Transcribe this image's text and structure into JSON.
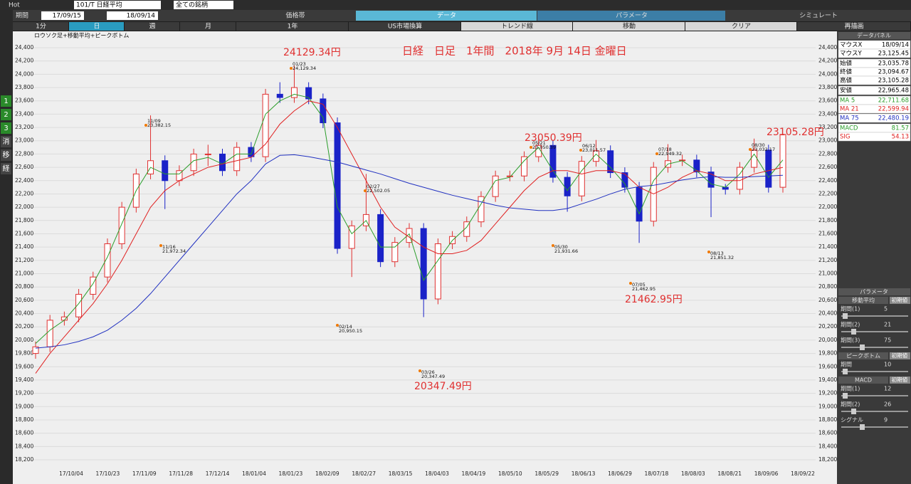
{
  "toolbar": {
    "app": "Hot",
    "period_label": "期間",
    "from": "17/09/15",
    "to": "18/09/14",
    "symbol": "101/T 日経平均",
    "market": "全ての銘柄"
  },
  "tabs": [
    "価格帯",
    "データ",
    "パラメータ",
    "シミュレート"
  ],
  "buttons": [
    "1分",
    "日",
    "週",
    "月",
    "1年",
    "US市場換算",
    "トレンド線",
    "移動",
    "クリア",
    "再描画"
  ],
  "sidebar": [
    "1",
    "2",
    "3",
    "消",
    "移",
    "経"
  ],
  "chart_data": {
    "type": "candlestick",
    "title": "日経　日足　1年間　2018年 9月 14日 金曜日",
    "subtitle": "ロウソク足+移動平均+ピークボトム",
    "x_labels": [
      "17/10/04",
      "17/10/23",
      "17/11/09",
      "17/11/28",
      "17/12/14",
      "18/01/04",
      "18/01/23",
      "18/02/09",
      "18/02/27",
      "18/03/15",
      "18/04/03",
      "18/04/19",
      "18/05/10",
      "18/05/29",
      "18/06/13",
      "18/06/29",
      "18/07/18",
      "18/08/03",
      "18/08/21",
      "18/09/06",
      "18/09/22"
    ],
    "candles": [
      [
        19800,
        19980,
        19720,
        19900
      ],
      [
        19900,
        20380,
        19820,
        20300
      ],
      [
        20300,
        20430,
        20220,
        20350
      ],
      [
        20350,
        20770,
        20270,
        20690
      ],
      [
        20690,
        21030,
        20610,
        20950
      ],
      [
        20950,
        21530,
        20870,
        21450
      ],
      [
        21450,
        22080,
        21370,
        22000
      ],
      [
        22000,
        22580,
        21920,
        22500
      ],
      [
        22500,
        23382,
        22420,
        22700
      ],
      [
        22700,
        22780,
        21972,
        22400
      ],
      [
        22400,
        22630,
        22320,
        22550
      ],
      [
        22550,
        22880,
        22470,
        22800
      ],
      [
        22800,
        22940,
        22620,
        22800
      ],
      [
        22800,
        22880,
        22470,
        22550
      ],
      [
        22550,
        22980,
        22470,
        22900
      ],
      [
        22900,
        22980,
        22680,
        22760
      ],
      [
        22760,
        23780,
        22680,
        23700
      ],
      [
        23700,
        23880,
        23570,
        23650
      ],
      [
        23650,
        24129,
        23570,
        23800
      ],
      [
        23800,
        23880,
        23550,
        23630
      ],
      [
        23630,
        23710,
        23190,
        23270
      ],
      [
        23270,
        23350,
        21300,
        21380
      ],
      [
        21380,
        21800,
        20950,
        21720
      ],
      [
        21720,
        22502,
        21640,
        21890
      ],
      [
        21890,
        21970,
        21100,
        21180
      ],
      [
        21180,
        21550,
        21100,
        21470
      ],
      [
        21470,
        21760,
        21390,
        21680
      ],
      [
        21680,
        21760,
        20347,
        20620
      ],
      [
        20620,
        21530,
        20540,
        21450
      ],
      [
        21450,
        21640,
        21370,
        21560
      ],
      [
        21560,
        21860,
        21480,
        21780
      ],
      [
        21780,
        22240,
        21700,
        22160
      ],
      [
        22160,
        22550,
        22080,
        22470
      ],
      [
        22470,
        22550,
        22390,
        22470
      ],
      [
        22470,
        22840,
        22390,
        22760
      ],
      [
        22760,
        23050,
        22680,
        22930
      ],
      [
        22930,
        23010,
        22370,
        22450
      ],
      [
        22450,
        22530,
        21932,
        22170
      ],
      [
        22170,
        22770,
        22090,
        22690
      ],
      [
        22690,
        23012,
        22610,
        22850
      ],
      [
        22850,
        22930,
        22440,
        22520
      ],
      [
        22520,
        22600,
        22220,
        22300
      ],
      [
        22300,
        22380,
        21463,
        21790
      ],
      [
        21790,
        22680,
        21710,
        22600
      ],
      [
        22600,
        22949,
        22520,
        22700
      ],
      [
        22700,
        22790,
        22620,
        22710
      ],
      [
        22710,
        22790,
        22450,
        22530
      ],
      [
        22530,
        22610,
        21851,
        22300
      ],
      [
        22300,
        22350,
        22190,
        22270
      ],
      [
        22270,
        22680,
        22190,
        22600
      ],
      [
        22600,
        23032,
        22520,
        22860
      ],
      [
        22860,
        22940,
        22220,
        22300
      ],
      [
        22300,
        23105,
        22220,
        23095
      ]
    ],
    "up_color": "#e03030",
    "down_color": "#1a22c8",
    "series": [
      {
        "color": "#2a9d2a",
        "values": [
          19950,
          20150,
          20300,
          20550,
          20850,
          21250,
          21750,
          22250,
          22600,
          22500,
          22500,
          22700,
          22750,
          22650,
          22800,
          22800,
          23400,
          23600,
          23700,
          23650,
          23350,
          22000,
          21600,
          21800,
          21400,
          21400,
          21600,
          20900,
          21200,
          21500,
          21700,
          22050,
          22400,
          22450,
          22700,
          22900,
          22550,
          22250,
          22550,
          22800,
          22600,
          22350,
          21900,
          22400,
          22650,
          22700,
          22550,
          22350,
          22300,
          22500,
          22800,
          22450,
          22712
        ]
      },
      {
        "color": "#e02020",
        "values": [
          19500,
          19800,
          20050,
          20300,
          20550,
          20850,
          21200,
          21600,
          22000,
          22250,
          22400,
          22500,
          22600,
          22650,
          22700,
          22750,
          22950,
          23250,
          23450,
          23600,
          23550,
          23200,
          22800,
          22400,
          22000,
          21700,
          21550,
          21400,
          21300,
          21300,
          21350,
          21500,
          21750,
          22000,
          22250,
          22450,
          22550,
          22550,
          22500,
          22550,
          22550,
          22500,
          22300,
          22200,
          22300,
          22450,
          22550,
          22500,
          22400,
          22400,
          22500,
          22550,
          22600
        ]
      },
      {
        "color": "#2030c0",
        "values": [
          19880,
          19900,
          19930,
          19980,
          20050,
          20150,
          20300,
          20480,
          20700,
          20950,
          21200,
          21450,
          21700,
          21950,
          22200,
          22400,
          22650,
          22780,
          22790,
          22760,
          22720,
          22680,
          22620,
          22560,
          22500,
          22430,
          22360,
          22300,
          22240,
          22180,
          22130,
          22080,
          22030,
          21990,
          21970,
          21950,
          21950,
          21980,
          22050,
          22120,
          22200,
          22270,
          22310,
          22330,
          22370,
          22410,
          22440,
          22460,
          22450,
          22450,
          22460,
          22470,
          22480
        ]
      }
    ],
    "ylim": [
      18200,
      24400
    ],
    "yticks": [
      {
        "value": 18200,
        "label": "18,200"
      },
      {
        "value": 18400,
        "label": "18,400"
      },
      {
        "value": 18600,
        "label": "18,600"
      },
      {
        "value": 18800,
        "label": "18,800"
      },
      {
        "value": 19000,
        "label": "19,000"
      },
      {
        "value": 19200,
        "label": "19,200"
      },
      {
        "value": 19400,
        "label": "19,400"
      },
      {
        "value": 19600,
        "label": "19,600"
      },
      {
        "value": 19800,
        "label": "19,800"
      },
      {
        "value": 20000,
        "label": "20,000"
      },
      {
        "value": 20200,
        "label": "20,200"
      },
      {
        "value": 20400,
        "label": "20,400"
      },
      {
        "value": 20600,
        "label": "20,600"
      },
      {
        "value": 20800,
        "label": "20,800"
      },
      {
        "value": 21000,
        "label": "21,000"
      },
      {
        "value": 21200,
        "label": "21,200"
      },
      {
        "value": 21400,
        "label": "21,400"
      },
      {
        "value": 21600,
        "label": "21,600"
      },
      {
        "value": 21800,
        "label": "21,800"
      },
      {
        "value": 22000,
        "label": "22,000"
      },
      {
        "value": 22200,
        "label": "22,200"
      },
      {
        "value": 22400,
        "label": "22,400"
      },
      {
        "value": 22600,
        "label": "22,600"
      },
      {
        "value": 22800,
        "label": "22,800"
      },
      {
        "value": 23000,
        "label": "23,000"
      },
      {
        "value": 23200,
        "label": "23,200"
      },
      {
        "value": 23400,
        "label": "23,400"
      },
      {
        "value": 23600,
        "label": "23,600"
      },
      {
        "value": 23800,
        "label": "23,800"
      },
      {
        "value": 24000,
        "label": "24,000"
      },
      {
        "value": 24200,
        "label": "24,200"
      },
      {
        "value": 24400,
        "label": "24,400"
      }
    ],
    "grid": true,
    "annotations": [
      "24129.34円",
      "23050.39円",
      "23105.28円",
      "21462.95円",
      "20347.49円"
    ],
    "peaks": [
      {
        "date": "11/09",
        "price": "23,382.15"
      },
      {
        "date": "11/16",
        "price": "21,972.34"
      },
      {
        "date": "01/23",
        "price": "24,129.34"
      },
      {
        "date": "02/14",
        "price": "20,950.15"
      },
      {
        "date": "02/27",
        "price": "22,502.05"
      },
      {
        "date": "03/26",
        "price": "20,347.49"
      },
      {
        "date": "05/21",
        "price": "23,050.39"
      },
      {
        "date": "05/30",
        "price": "21,931.66"
      },
      {
        "date": "06/12",
        "price": "23,011.57"
      },
      {
        "date": "07/05",
        "price": "21,462.95"
      },
      {
        "date": "07/18",
        "price": "22,949.32"
      },
      {
        "date": "08/13",
        "price": "21,851.32"
      },
      {
        "date": "08/30",
        "price": "23,032.17"
      }
    ]
  },
  "data_panel": {
    "title": "データパネル",
    "rows": [
      [
        "マウスX",
        "18/09/14"
      ],
      [
        "マウスY",
        "23,125.45"
      ],
      [
        "始値",
        "23,035.78"
      ],
      [
        "終値",
        "23,094.67"
      ],
      [
        "高値",
        "23,105.28"
      ],
      [
        "安値",
        "22,965.48"
      ],
      [
        "MA 5",
        "22,711.68"
      ],
      [
        "MA 21",
        "22,599.94"
      ],
      [
        "MA 75",
        "22,480.19"
      ],
      [
        "MACD",
        "81.57"
      ],
      [
        "SIG",
        "54.13"
      ]
    ]
  },
  "param_panel": {
    "title": "パラメータ",
    "groups": [
      {
        "name": "移動平均",
        "reset": "初期値",
        "rows": [
          [
            "期間(1)",
            "5"
          ],
          [
            "期間(2)",
            "21"
          ],
          [
            "期間(3)",
            "75"
          ]
        ]
      },
      {
        "name": "ピークボトム",
        "reset": "初期値",
        "rows": [
          [
            "期間",
            "10"
          ]
        ]
      },
      {
        "name": "MACD",
        "reset": "初期値",
        "rows": [
          [
            "期間(1)",
            "12"
          ],
          [
            "期間(2)",
            "26"
          ],
          [
            "シグナル",
            "9"
          ]
        ]
      }
    ]
  }
}
